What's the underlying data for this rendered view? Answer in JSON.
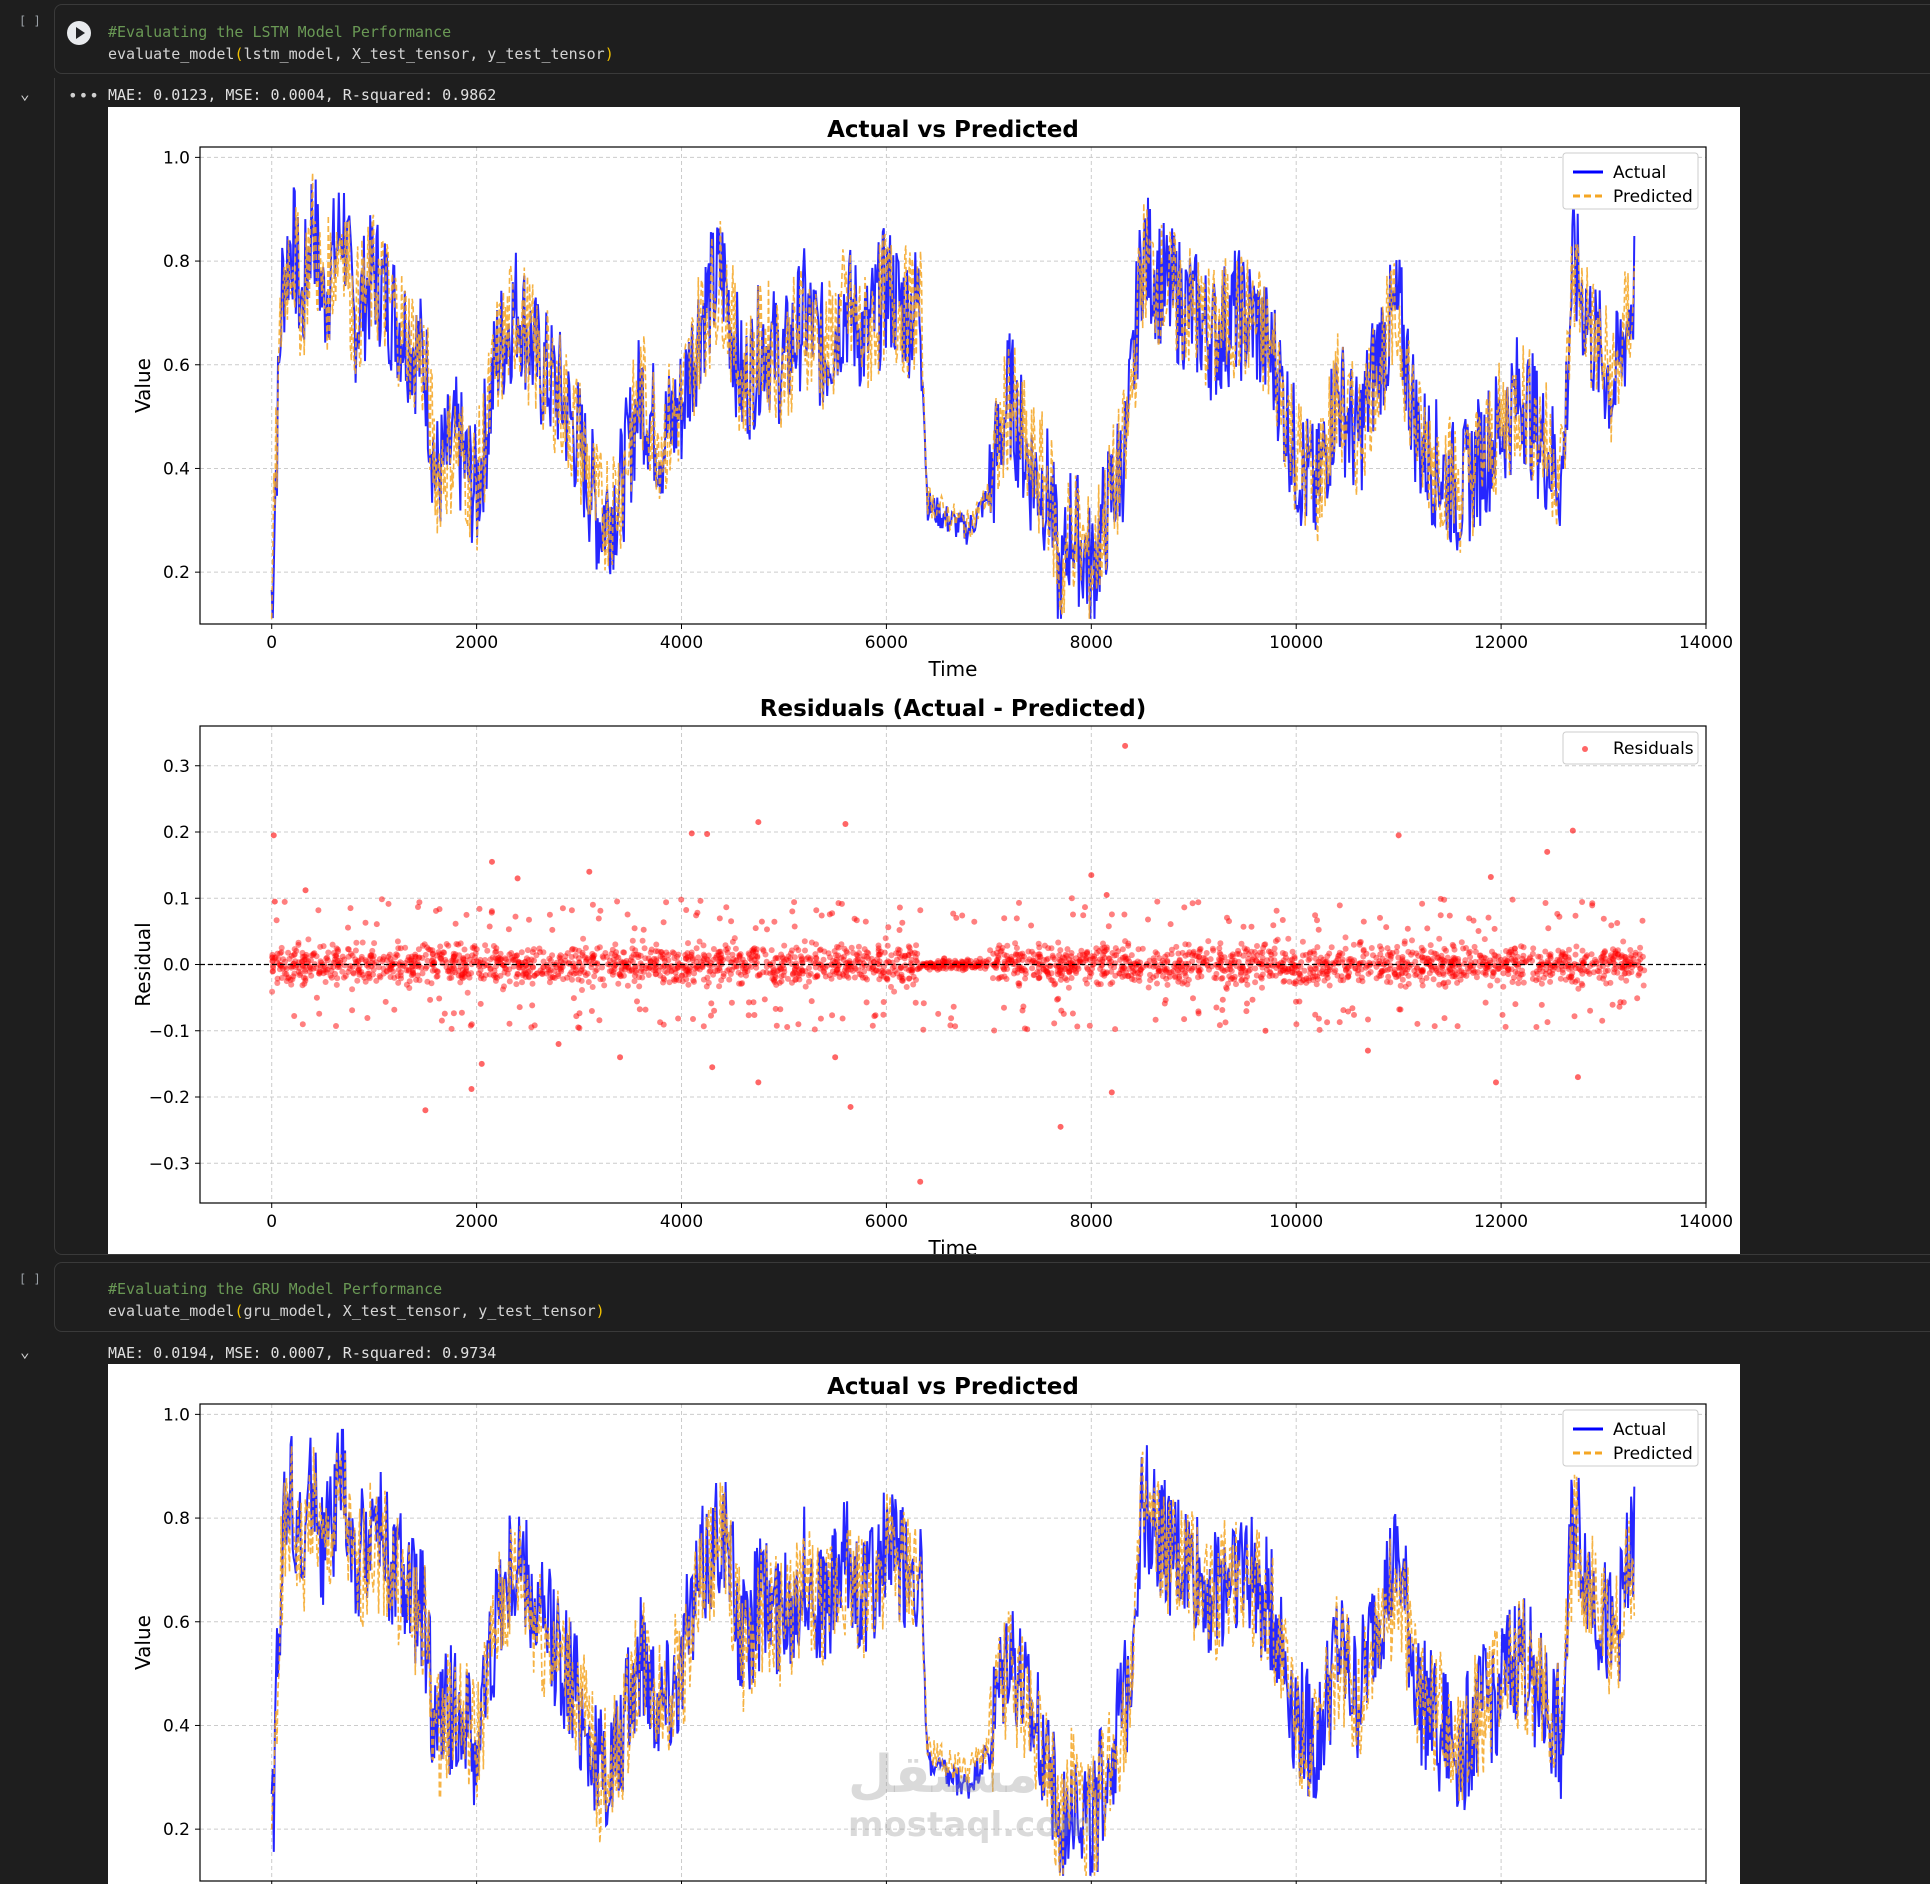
{
  "cells": [
    {
      "bracket": "[ ]",
      "comment": "#Evaluating the LSTM Model Performance",
      "code_fn": "evaluate_model",
      "code_args": "lstm_model, X_test_tensor, y_test_tensor",
      "output_metrics": "MAE: 0.0123, MSE: 0.0004, R-squared: 0.9862"
    },
    {
      "bracket": "[ ]",
      "comment": "#Evaluating the GRU Model Performance",
      "code_fn": "evaluate_model",
      "code_args": "gru_model, X_test_tensor, y_test_tensor",
      "output_metrics": "MAE: 0.0194, MSE: 0.0007, R-squared: 0.9734"
    }
  ],
  "watermark": {
    "arabic": "مستقل",
    "latin": "mostaql.com"
  },
  "chart_data": [
    {
      "type": "line",
      "title": "Actual vs Predicted",
      "xlabel": "Time",
      "ylabel": "Value",
      "xlim": [
        -700,
        14000
      ],
      "ylim": [
        0.1,
        1.02
      ],
      "xticks": [
        "0",
        "2000",
        "4000",
        "6000",
        "8000",
        "10000",
        "12000",
        "14000"
      ],
      "yticks": [
        "0.2",
        "0.4",
        "0.6",
        "0.8",
        "1.0"
      ],
      "grid": true,
      "legend": "top-right",
      "series": [
        {
          "name": "Actual",
          "color": "#0000ff",
          "style": "solid",
          "x": [
            0,
            100,
            200,
            300,
            400,
            500,
            700,
            800,
            1000,
            1200,
            1500,
            1600,
            1800,
            2000,
            2200,
            2400,
            2600,
            2800,
            3000,
            3200,
            3400,
            3600,
            3800,
            4000,
            4200,
            4400,
            4600,
            4800,
            5000,
            5200,
            5400,
            5600,
            5800,
            6000,
            6200,
            6330,
            6400,
            6600,
            6800,
            7000,
            7200,
            7400,
            7600,
            7700,
            7800,
            8000,
            8200,
            8350,
            8500,
            8700,
            9000,
            9200,
            9400,
            9600,
            9800,
            10000,
            10200,
            10400,
            10600,
            10800,
            11000,
            11200,
            11400,
            11600,
            11800,
            12000,
            12200,
            12400,
            12600,
            12700,
            12900,
            13100,
            13300
          ],
          "y": [
            0.15,
            0.75,
            0.85,
            0.7,
            0.9,
            0.72,
            0.88,
            0.68,
            0.78,
            0.7,
            0.6,
            0.38,
            0.45,
            0.35,
            0.62,
            0.72,
            0.6,
            0.55,
            0.45,
            0.3,
            0.35,
            0.55,
            0.45,
            0.52,
            0.7,
            0.78,
            0.55,
            0.65,
            0.6,
            0.7,
            0.62,
            0.72,
            0.65,
            0.75,
            0.7,
            0.72,
            0.33,
            0.3,
            0.28,
            0.35,
            0.55,
            0.4,
            0.35,
            0.15,
            0.3,
            0.2,
            0.35,
            0.45,
            0.82,
            0.75,
            0.7,
            0.65,
            0.7,
            0.68,
            0.6,
            0.42,
            0.35,
            0.55,
            0.45,
            0.62,
            0.7,
            0.45,
            0.4,
            0.35,
            0.42,
            0.48,
            0.55,
            0.45,
            0.38,
            0.8,
            0.65,
            0.55,
            0.75
          ]
        },
        {
          "name": "Predicted",
          "color": "#f5a623",
          "style": "dashed",
          "x": [
            0,
            100,
            200,
            300,
            400,
            500,
            700,
            800,
            1000,
            1200,
            1500,
            1600,
            1800,
            2000,
            2200,
            2400,
            2600,
            2800,
            3000,
            3200,
            3400,
            3600,
            3800,
            4000,
            4200,
            4400,
            4600,
            4800,
            5000,
            5200,
            5400,
            5600,
            5800,
            6000,
            6200,
            6330,
            6400,
            6600,
            6800,
            7000,
            7200,
            7400,
            7600,
            7700,
            7800,
            8000,
            8200,
            8350,
            8500,
            8700,
            9000,
            9200,
            9400,
            9600,
            9800,
            10000,
            10200,
            10400,
            10600,
            10800,
            11000,
            11200,
            11400,
            11600,
            11800,
            12000,
            12200,
            12400,
            12600,
            12700,
            12900,
            13100,
            13300
          ],
          "y": [
            0.15,
            0.74,
            0.84,
            0.71,
            0.88,
            0.72,
            0.87,
            0.69,
            0.77,
            0.7,
            0.6,
            0.39,
            0.45,
            0.36,
            0.61,
            0.71,
            0.6,
            0.55,
            0.46,
            0.31,
            0.36,
            0.55,
            0.46,
            0.52,
            0.69,
            0.77,
            0.56,
            0.65,
            0.6,
            0.69,
            0.62,
            0.71,
            0.65,
            0.74,
            0.7,
            0.71,
            0.34,
            0.31,
            0.29,
            0.35,
            0.54,
            0.41,
            0.36,
            0.17,
            0.3,
            0.21,
            0.35,
            0.45,
            0.8,
            0.75,
            0.7,
            0.66,
            0.7,
            0.68,
            0.6,
            0.43,
            0.36,
            0.54,
            0.46,
            0.61,
            0.69,
            0.45,
            0.41,
            0.36,
            0.42,
            0.48,
            0.54,
            0.46,
            0.39,
            0.79,
            0.65,
            0.56,
            0.74
          ]
        }
      ]
    },
    {
      "type": "scatter",
      "title": "Residuals (Actual - Predicted)",
      "xlabel": "Time",
      "ylabel": "Residual",
      "xlim": [
        -700,
        14000
      ],
      "ylim": [
        -0.36,
        0.36
      ],
      "xticks": [
        "0",
        "2000",
        "4000",
        "6000",
        "8000",
        "10000",
        "12000",
        "14000"
      ],
      "yticks": [
        "0.3",
        "0.2",
        "0.1",
        "0.0",
        "−0.1",
        "−0.2",
        "−0.3"
      ],
      "grid": true,
      "legend": "top-right",
      "series": [
        {
          "name": "Residuals",
          "color": "#ff0000",
          "outliers_x": [
            20,
            30,
            330,
            2150,
            2400,
            3100,
            4100,
            4250,
            4750,
            5600,
            8330,
            8150,
            8000,
            11000,
            12700,
            12450,
            11900,
            1500,
            1950,
            2050,
            4300,
            4750,
            6330,
            5650,
            7700,
            8200,
            12750,
            11950,
            2800,
            3400,
            5500,
            9700,
            10700
          ],
          "outliers_y": [
            0.195,
            0.095,
            0.112,
            0.155,
            0.13,
            0.14,
            0.198,
            0.197,
            0.215,
            0.212,
            0.33,
            0.105,
            0.135,
            0.195,
            0.202,
            0.17,
            0.132,
            -0.22,
            -0.188,
            -0.15,
            -0.155,
            -0.178,
            -0.328,
            -0.215,
            -0.245,
            -0.193,
            -0.17,
            -0.178,
            -0.12,
            -0.14,
            -0.14,
            -0.1,
            -0.13
          ]
        }
      ],
      "zero_line": true
    },
    {
      "type": "line",
      "title": "Actual vs Predicted",
      "xlabel": "",
      "ylabel": "Value",
      "xlim": [
        -700,
        14000
      ],
      "ylim": [
        0.1,
        1.02
      ],
      "xticks": [],
      "yticks": [
        "0.2",
        "0.4",
        "0.6",
        "0.8",
        "1.0"
      ],
      "grid": true,
      "legend": "top-right",
      "series": [
        {
          "name": "Actual",
          "color": "#0000ff",
          "style": "solid",
          "x": [
            0,
            100,
            200,
            300,
            400,
            500,
            700,
            800,
            1000,
            1200,
            1500,
            1600,
            1800,
            2000,
            2200,
            2400,
            2600,
            2800,
            3000,
            3200,
            3400,
            3600,
            3800,
            4000,
            4200,
            4400,
            4600,
            4800,
            5000,
            5200,
            5400,
            5600,
            5800,
            6000,
            6200,
            6330,
            6400,
            6600,
            6800,
            7000,
            7200,
            7400,
            7600,
            7700,
            7800,
            8000,
            8200,
            8350,
            8500,
            8700,
            9000,
            9200,
            9400,
            9600,
            9800,
            10000,
            10200,
            10400,
            10600,
            10800,
            11000,
            11200,
            11400,
            11600,
            11800,
            12000,
            12200,
            12400,
            12600,
            12700,
            12900,
            13100,
            13300
          ],
          "y": [
            0.15,
            0.76,
            0.86,
            0.7,
            0.92,
            0.72,
            0.9,
            0.68,
            0.8,
            0.7,
            0.6,
            0.38,
            0.45,
            0.35,
            0.62,
            0.72,
            0.6,
            0.55,
            0.45,
            0.3,
            0.35,
            0.55,
            0.45,
            0.52,
            0.7,
            0.8,
            0.55,
            0.65,
            0.6,
            0.7,
            0.62,
            0.72,
            0.65,
            0.75,
            0.7,
            0.72,
            0.33,
            0.3,
            0.28,
            0.35,
            0.55,
            0.4,
            0.35,
            0.15,
            0.3,
            0.2,
            0.35,
            0.45,
            0.84,
            0.75,
            0.7,
            0.65,
            0.72,
            0.68,
            0.6,
            0.42,
            0.35,
            0.55,
            0.45,
            0.62,
            0.72,
            0.45,
            0.4,
            0.35,
            0.42,
            0.48,
            0.55,
            0.45,
            0.38,
            0.82,
            0.65,
            0.55,
            0.76
          ]
        },
        {
          "name": "Predicted",
          "color": "#f5a623",
          "style": "dashed",
          "x": [
            0,
            100,
            200,
            300,
            400,
            500,
            700,
            800,
            1000,
            1200,
            1500,
            1600,
            1800,
            2000,
            2200,
            2400,
            2600,
            2800,
            3000,
            3200,
            3400,
            3600,
            3800,
            4000,
            4200,
            4400,
            4600,
            4800,
            5000,
            5200,
            5400,
            5600,
            5800,
            6000,
            6200,
            6330,
            6400,
            6600,
            6800,
            7000,
            7200,
            7400,
            7600,
            7700,
            7800,
            8000,
            8200,
            8350,
            8500,
            8700,
            9000,
            9200,
            9400,
            9600,
            9800,
            10000,
            10200,
            10400,
            10600,
            10800,
            11000,
            11200,
            11400,
            11600,
            11800,
            12000,
            12200,
            12400,
            12600,
            12700,
            12900,
            13100,
            13300
          ],
          "y": [
            0.15,
            0.72,
            0.82,
            0.7,
            0.86,
            0.71,
            0.85,
            0.67,
            0.76,
            0.69,
            0.59,
            0.37,
            0.44,
            0.36,
            0.6,
            0.7,
            0.59,
            0.54,
            0.45,
            0.3,
            0.36,
            0.54,
            0.45,
            0.51,
            0.68,
            0.76,
            0.55,
            0.63,
            0.59,
            0.68,
            0.61,
            0.7,
            0.64,
            0.73,
            0.69,
            0.7,
            0.35,
            0.33,
            0.31,
            0.36,
            0.53,
            0.41,
            0.35,
            0.16,
            0.29,
            0.2,
            0.34,
            0.44,
            0.8,
            0.73,
            0.69,
            0.64,
            0.7,
            0.67,
            0.59,
            0.42,
            0.35,
            0.53,
            0.44,
            0.6,
            0.68,
            0.46,
            0.42,
            0.37,
            0.43,
            0.48,
            0.53,
            0.45,
            0.38,
            0.78,
            0.64,
            0.55,
            0.73
          ]
        }
      ]
    }
  ]
}
